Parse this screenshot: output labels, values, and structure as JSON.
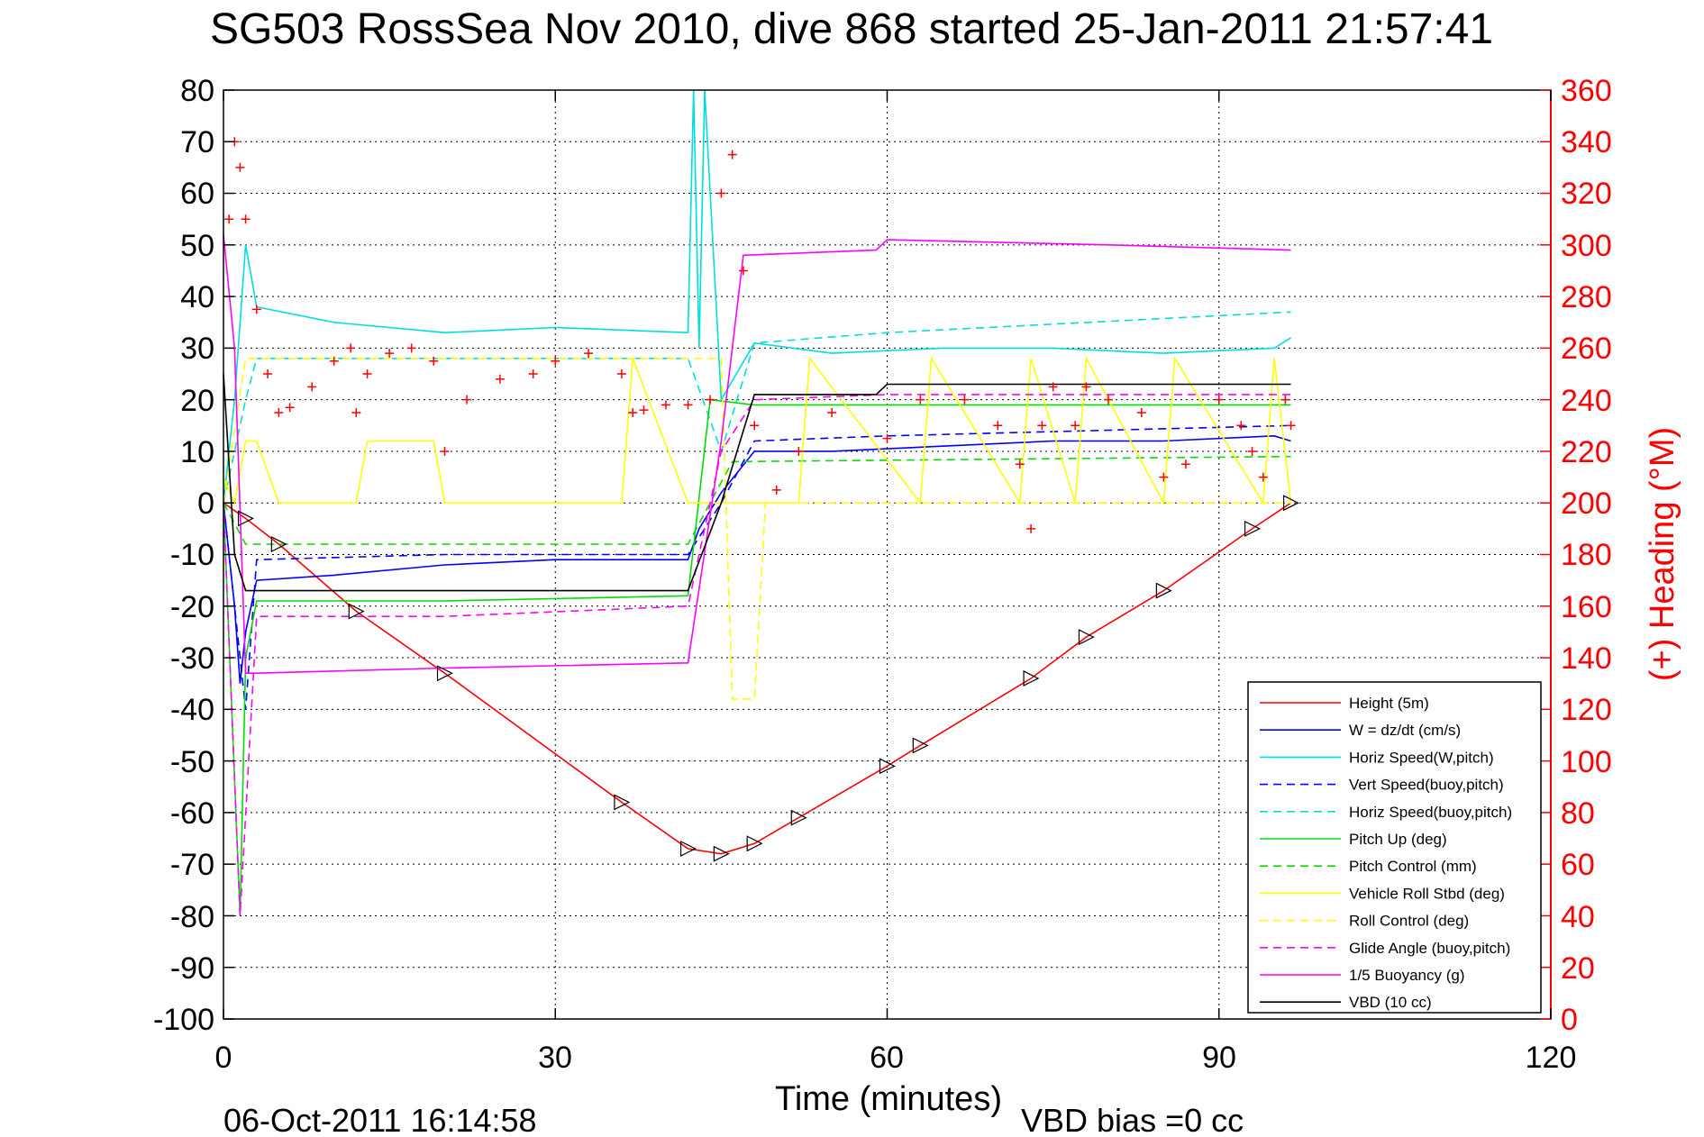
{
  "chart_data": {
    "type": "line",
    "title": "SG503 RossSea Nov 2010, dive 868 started 25-Jan-2011 21:57:41",
    "xlabel": "Time (minutes)",
    "ylabel_right": "(+) Heading (°M)",
    "xlim": [
      0,
      120
    ],
    "ylim": [
      -100,
      80
    ],
    "ylim_right": [
      0,
      360
    ],
    "xticks": [
      "0",
      "30",
      "60",
      "90",
      "120"
    ],
    "yticks": [
      "80",
      "70",
      "60",
      "50",
      "40",
      "30",
      "20",
      "10",
      "0",
      "-10",
      "-20",
      "-30",
      "-40",
      "-50",
      "-60",
      "-70",
      "-80",
      "-90",
      "-100"
    ],
    "yticks_right": [
      "360",
      "340",
      "320",
      "300",
      "280",
      "260",
      "240",
      "220",
      "200",
      "180",
      "160",
      "140",
      "120",
      "100",
      "80",
      "60",
      "40",
      "20",
      "0"
    ],
    "grid": true,
    "legend_position": "lower-right",
    "footer_left": "06-Oct-2011 16:14:58",
    "footer_right": "VBD bias =0 cc",
    "series": [
      {
        "name": "Height (5m)",
        "color": "#ff0000",
        "style": "solid",
        "x": [
          0,
          2,
          5,
          12,
          20,
          36,
          42,
          45,
          48,
          52,
          60,
          63,
          73,
          78,
          85,
          93,
          96.5
        ],
        "y": [
          0,
          -3,
          -8,
          -21,
          -33,
          -58,
          -67,
          -68,
          -66,
          -61,
          -51,
          -47,
          -34,
          -26,
          -17,
          -5,
          0
        ]
      },
      {
        "name": "W = dz/dt (cm/s)",
        "color": "#0000ff",
        "style": "solid",
        "x": [
          0,
          1,
          1.5,
          2,
          3,
          10,
          20,
          30,
          42,
          43,
          45,
          48,
          55,
          65,
          75,
          85,
          95,
          96.5
        ],
        "y": [
          0,
          -20,
          -35,
          -25,
          -15,
          -14,
          -12,
          -11,
          -11,
          -5,
          2,
          10,
          10,
          11,
          12,
          12,
          13,
          12
        ]
      },
      {
        "name": "Horiz Speed(W,pitch)",
        "color": "#00dddd",
        "style": "solid",
        "x": [
          0,
          1,
          2,
          3,
          10,
          20,
          30,
          42,
          42.5,
          43,
          43.5,
          45,
          48,
          55,
          65,
          75,
          85,
          95,
          96.5
        ],
        "y": [
          0,
          20,
          50,
          38,
          35,
          33,
          34,
          33,
          80,
          30,
          80,
          20,
          31,
          29,
          30,
          30,
          29,
          30,
          32
        ]
      },
      {
        "name": "Vert Speed(buoy,pitch)",
        "color": "#0000ff",
        "style": "dashed",
        "x": [
          0,
          2,
          3,
          20,
          42,
          45,
          48,
          60,
          96.5
        ],
        "y": [
          0,
          -40,
          -11,
          -10,
          -10,
          0,
          12,
          13,
          15
        ]
      },
      {
        "name": "Horiz Speed(buoy,pitch)",
        "color": "#00dddd",
        "style": "dashed",
        "x": [
          0,
          2,
          3,
          20,
          42,
          45,
          48,
          60,
          96.5
        ],
        "y": [
          0,
          20,
          28,
          28,
          28,
          10,
          31,
          33,
          37
        ]
      },
      {
        "name": "Pitch Up (deg)",
        "color": "#00dd00",
        "style": "solid",
        "x": [
          0,
          1.5,
          2,
          3,
          20,
          42,
          44,
          48,
          60,
          96.5
        ],
        "y": [
          0,
          -80,
          -30,
          -19,
          -19,
          -18,
          20,
          19,
          19,
          19
        ]
      },
      {
        "name": "Pitch Control (mm)",
        "color": "#00dd00",
        "style": "dashed",
        "x": [
          0,
          2,
          3,
          42,
          46,
          96.5
        ],
        "y": [
          0,
          -8,
          -8,
          -8,
          8,
          9
        ]
      },
      {
        "name": "Vehicle Roll Stbd (deg)",
        "color": "#ffff00",
        "style": "solid",
        "x": [
          0,
          1,
          2,
          3,
          5,
          12,
          13,
          19,
          20,
          36,
          37,
          42,
          45,
          48,
          52,
          53,
          63,
          64,
          72,
          73,
          77,
          78,
          85,
          86,
          94,
          95,
          96.5
        ],
        "y": [
          5,
          0,
          12,
          12,
          0,
          0,
          12,
          12,
          0,
          0,
          28,
          0,
          0,
          0,
          0,
          28,
          0,
          28,
          0,
          28,
          0,
          28,
          0,
          28,
          0,
          28,
          0
        ]
      },
      {
        "name": "Roll Control (deg)",
        "color": "#ffff00",
        "style": "dashed",
        "x": [
          0,
          2,
          3,
          5,
          45,
          46,
          48,
          49,
          96.5
        ],
        "y": [
          0,
          28,
          28,
          28,
          28,
          -38,
          -38,
          0,
          0
        ]
      },
      {
        "name": "Glide Angle (buoy,pitch)",
        "color": "#ff00ff",
        "style": "dashed",
        "x": [
          0,
          1.5,
          3,
          20,
          42,
          45,
          48,
          60,
          96.5
        ],
        "y": [
          0,
          -80,
          -22,
          -22,
          -20,
          10,
          20,
          21,
          21
        ]
      },
      {
        "name": "1/5 Buoyancy (g)",
        "color": "#ff00ff",
        "style": "solid",
        "x": [
          0,
          1,
          2,
          3,
          20,
          42,
          45,
          47,
          59,
          60,
          80,
          96.5
        ],
        "y": [
          52,
          30,
          -33,
          -33,
          -32,
          -31,
          12,
          48,
          49,
          51,
          50,
          49
        ]
      },
      {
        "name": "VBD (10 cc)",
        "color": "#000000",
        "style": "solid",
        "x": [
          0,
          1,
          2,
          3,
          20,
          42,
          45,
          48,
          59,
          60,
          96.5
        ],
        "y": [
          25,
          -10,
          -17,
          -17,
          -17,
          -17,
          0,
          21,
          21,
          23,
          23
        ]
      },
      {
        "name": "Heading",
        "color": "#ff0000",
        "style": "markers",
        "axis": "right",
        "x": [
          0.5,
          1,
          1.5,
          2,
          3,
          4,
          5,
          6,
          8,
          10,
          11.5,
          12,
          13,
          15,
          17,
          19,
          20,
          22,
          25,
          28,
          30,
          33,
          36,
          37,
          38,
          40,
          42,
          44,
          45,
          46,
          47,
          48,
          50,
          52,
          55,
          60,
          63,
          67,
          70,
          72,
          73,
          74,
          75,
          77,
          78,
          80,
          83,
          85,
          87,
          90,
          92,
          93,
          94,
          96,
          96.5
        ],
        "y": [
          310,
          340,
          330,
          310,
          275,
          250,
          235,
          237,
          245,
          255,
          260,
          235,
          250,
          258,
          260,
          255,
          220,
          240,
          248,
          250,
          255,
          258,
          250,
          235,
          236,
          238,
          238,
          240,
          320,
          335,
          290,
          230,
          205,
          220,
          235,
          225,
          240,
          240,
          230,
          215,
          190,
          230,
          245,
          230,
          245,
          240,
          235,
          210,
          215,
          240,
          230,
          220,
          210,
          240,
          230
        ]
      }
    ]
  }
}
